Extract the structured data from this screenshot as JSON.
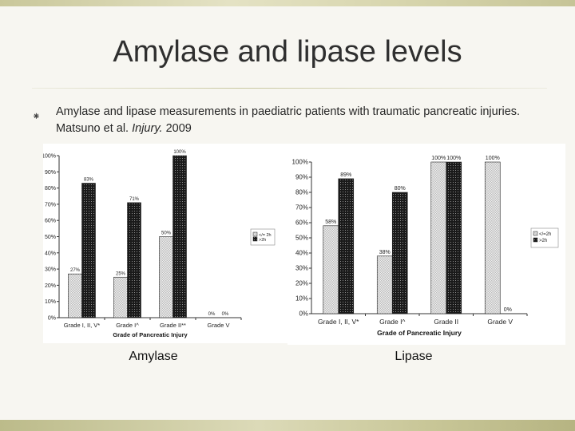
{
  "slide": {
    "title": "Amylase and lipase levels",
    "bullet_symbol": "⁕",
    "bullet_main": "Amylase and lipase measurements in paediatric patients with traumatic pancreatic injuries. Matsuno et al.",
    "bullet_journal": "Injury.",
    "bullet_year": "2009",
    "caption_amylase": "Amylase",
    "caption_lipase": "Lipase"
  },
  "colors": {
    "bar_early": "#bdbdbd",
    "bar_late": "#1a1a1a"
  },
  "chart_data": [
    {
      "type": "bar",
      "xlabel": "Grade of Pancreatic Injury",
      "ylim": [
        0,
        100
      ],
      "yticks": [
        "0%",
        "10%",
        "20%",
        "30%",
        "40%",
        "50%",
        "60%",
        "70%",
        "80%",
        "90%",
        "100%"
      ],
      "categories": [
        "Grade I, II, V*",
        "Grade I^",
        "Grade II**",
        "Grade V"
      ],
      "series": [
        {
          "name": "</= 2h",
          "values": [
            27,
            25,
            50,
            0
          ],
          "labels": [
            "27%",
            "25%",
            "50%",
            "0%"
          ]
        },
        {
          "name": ">2h",
          "values": [
            83,
            71,
            100,
            0
          ],
          "labels": [
            "83%",
            "71%",
            "100%",
            "0%"
          ]
        }
      ],
      "legend": "right"
    },
    {
      "type": "bar",
      "xlabel": "Grade of Pancreatic Injury",
      "ylim": [
        0,
        100
      ],
      "yticks": [
        "0%",
        "10%",
        "20%",
        "30%",
        "40%",
        "50%",
        "60%",
        "70%",
        "80%",
        "90%",
        "100%"
      ],
      "categories": [
        "Grade I, II, V*",
        "Grade I^",
        "Grade II",
        "Grade V"
      ],
      "series": [
        {
          "name": "</=2h",
          "values": [
            58,
            38,
            100,
            100
          ],
          "labels": [
            "58%",
            "38%",
            "100%",
            "100%"
          ]
        },
        {
          "name": ">2h",
          "values": [
            89,
            80,
            100,
            0
          ],
          "labels": [
            "89%",
            "80%",
            "100%",
            "0%"
          ]
        }
      ],
      "legend": "right"
    }
  ]
}
